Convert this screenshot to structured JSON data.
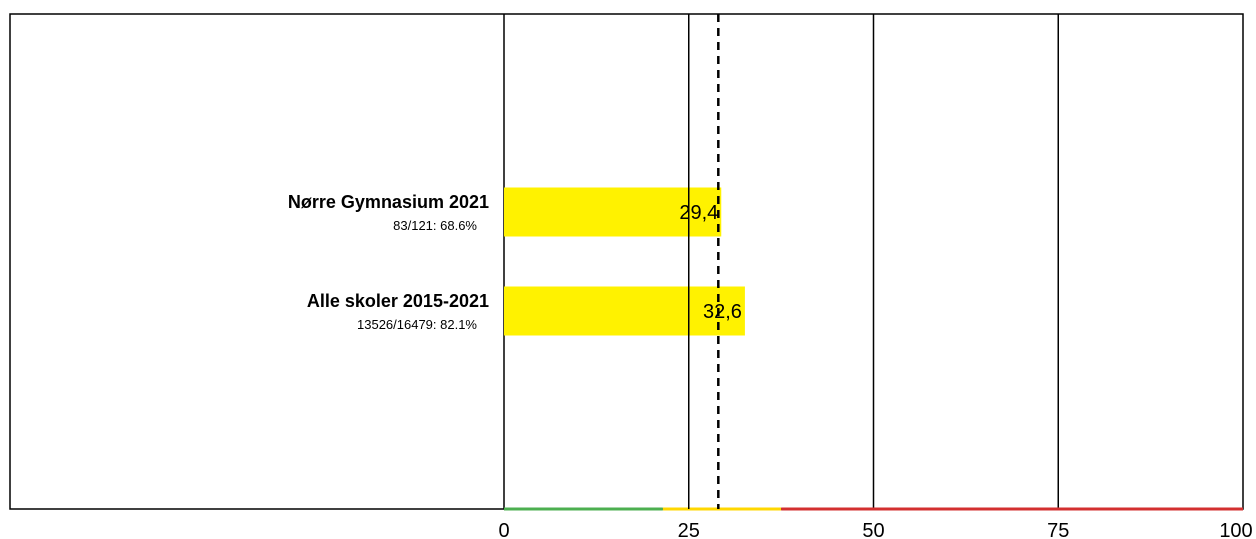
{
  "chart_data": {
    "type": "bar",
    "orientation": "horizontal",
    "title": "",
    "xlim": [
      0,
      100
    ],
    "x_ticks": [
      "0",
      "25",
      "50",
      "75",
      "100"
    ],
    "x_tick_values": [
      0,
      25,
      50,
      75,
      100
    ],
    "grid": true,
    "categories": [
      {
        "name": "Nørre Gymnasium 2021",
        "sub": "83/121: 68.6%"
      },
      {
        "name": "Alle skoler 2015-2021",
        "sub": "13526/16479: 82.1%"
      }
    ],
    "values": [
      29.4,
      32.6
    ],
    "value_labels": [
      "29,4",
      "32,6"
    ],
    "bar_color": "#FFF200",
    "reference_lines": [
      {
        "value": 25.0,
        "style": "solid"
      },
      {
        "value": 29.0,
        "style": "dashed"
      }
    ],
    "color_bands": [
      {
        "from": 0,
        "to": 21.5,
        "color": "#4CAF50"
      },
      {
        "from": 21.5,
        "to": 37.5,
        "color": "#FFD700"
      },
      {
        "from": 37.5,
        "to": 100,
        "color": "#D32F2F"
      }
    ]
  }
}
